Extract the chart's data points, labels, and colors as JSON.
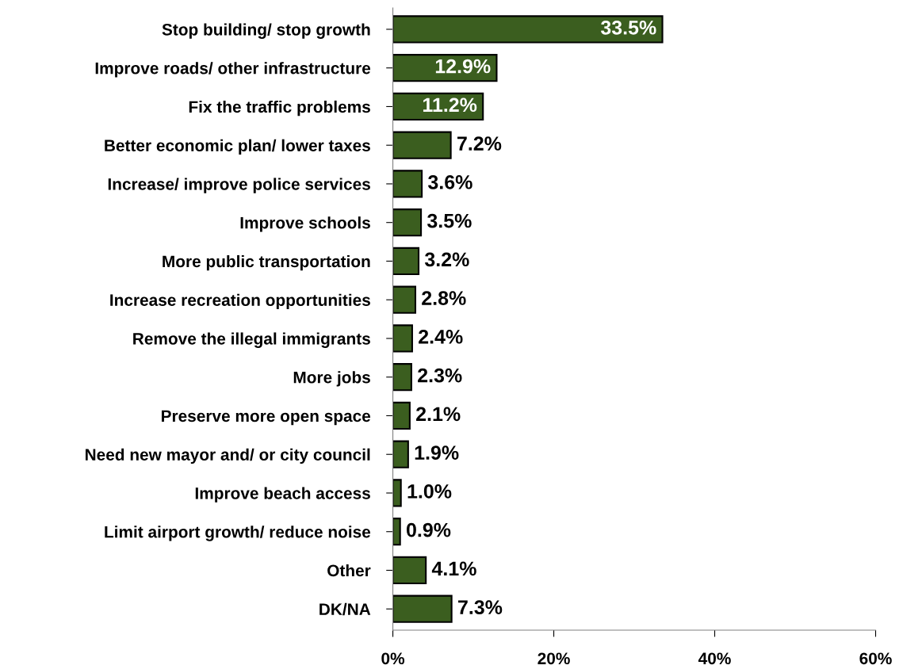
{
  "chart_data": {
    "type": "bar",
    "orientation": "horizontal",
    "categories": [
      "Stop building/ stop growth",
      "Improve roads/ other infrastructure",
      "Fix the traffic problems",
      "Better economic plan/ lower taxes",
      "Increase/ improve police services",
      "Improve schools",
      "More public transportation",
      "Increase recreation opportunities",
      "Remove the illegal immigrants",
      "More jobs",
      "Preserve more open space",
      "Need new mayor and/ or city council",
      "Improve beach access",
      "Limit airport growth/ reduce noise",
      "Other",
      "DK/NA"
    ],
    "values": [
      33.5,
      12.9,
      11.2,
      7.2,
      3.6,
      3.5,
      3.2,
      2.8,
      2.4,
      2.3,
      2.1,
      1.9,
      1.0,
      0.9,
      4.1,
      7.3
    ],
    "value_labels": [
      "33.5%",
      "12.9%",
      "11.2%",
      "7.2%",
      "3.6%",
      "3.5%",
      "3.2%",
      "2.8%",
      "2.4%",
      "2.3%",
      "2.1%",
      "1.9%",
      "1.0%",
      "0.9%",
      "4.1%",
      "7.3%"
    ],
    "color": "#3b5e1f",
    "xlim": [
      0,
      60
    ],
    "xticks": [
      {
        "value": 0,
        "label": "0%"
      },
      {
        "value": 20,
        "label": "20%"
      },
      {
        "value": 40,
        "label": "40%"
      },
      {
        "value": 60,
        "label": "60%"
      }
    ],
    "grid": false,
    "legend": false
  }
}
